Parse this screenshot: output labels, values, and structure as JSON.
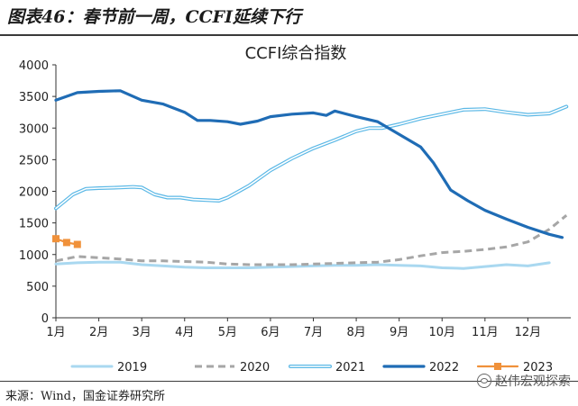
{
  "header": {
    "figure_title": "图表46：春节前一周，CCFI延续下行"
  },
  "footer": {
    "source": "来源：Wind，国金证券研究所",
    "watermark": "赵伟宏观探索"
  },
  "chart_data": {
    "type": "line",
    "title": "CCFI综合指数",
    "xlabel": "",
    "ylabel": "",
    "x_ticks": [
      "1月",
      "2月",
      "3月",
      "4月",
      "5月",
      "6月",
      "7月",
      "8月",
      "9月",
      "10月",
      "11月",
      "12月"
    ],
    "y_ticks": [
      0,
      500,
      1000,
      1500,
      2000,
      2500,
      3000,
      3500,
      4000
    ],
    "xlim": [
      1,
      13
    ],
    "ylim": [
      0,
      4000
    ],
    "grid": false,
    "legend": "bottom",
    "series": [
      {
        "name": "2019",
        "color": "#a9d8f0",
        "style": "solid",
        "x": [
          1.0,
          1.5,
          2.0,
          2.5,
          3.0,
          3.5,
          4.0,
          4.5,
          5.0,
          5.5,
          6.0,
          6.5,
          7.0,
          7.5,
          8.0,
          8.5,
          9.0,
          9.5,
          10.0,
          10.5,
          11.0,
          11.5,
          12.0,
          12.5
        ],
        "y": [
          850,
          870,
          880,
          880,
          840,
          820,
          800,
          790,
          790,
          790,
          800,
          810,
          820,
          830,
          830,
          840,
          830,
          820,
          790,
          780,
          810,
          840,
          820,
          870
        ]
      },
      {
        "name": "2020",
        "color": "#a6a6a6",
        "style": "dashed",
        "x": [
          1.0,
          1.5,
          2.0,
          2.5,
          3.0,
          3.5,
          4.0,
          4.5,
          5.0,
          5.5,
          6.0,
          6.5,
          7.0,
          7.5,
          8.0,
          8.5,
          9.0,
          9.5,
          10.0,
          10.5,
          11.0,
          11.5,
          12.0,
          12.5,
          12.9
        ],
        "y": [
          900,
          970,
          950,
          930,
          900,
          900,
          890,
          880,
          850,
          840,
          840,
          840,
          850,
          860,
          870,
          880,
          920,
          980,
          1030,
          1050,
          1080,
          1120,
          1200,
          1400,
          1620
        ]
      },
      {
        "name": "2021",
        "color": "#5bb8e6",
        "style": "double",
        "x": [
          1.0,
          1.4,
          1.7,
          2.0,
          2.5,
          2.8,
          3.0,
          3.3,
          3.6,
          3.9,
          4.2,
          4.5,
          4.8,
          5.0,
          5.5,
          6.0,
          6.5,
          7.0,
          7.5,
          8.0,
          8.3,
          8.6,
          9.0,
          9.5,
          10.0,
          10.5,
          11.0,
          11.5,
          12.0,
          12.5,
          12.9
        ],
        "y": [
          1730,
          1950,
          2040,
          2050,
          2060,
          2070,
          2060,
          1950,
          1900,
          1900,
          1870,
          1860,
          1850,
          1900,
          2090,
          2330,
          2520,
          2680,
          2810,
          2950,
          3000,
          3000,
          3060,
          3150,
          3220,
          3290,
          3300,
          3250,
          3210,
          3230,
          3340
        ]
      },
      {
        "name": "2022",
        "color": "#1f6cb5",
        "style": "solid-bold",
        "x": [
          1.0,
          1.5,
          2.0,
          2.5,
          3.0,
          3.5,
          4.0,
          4.3,
          4.6,
          5.0,
          5.3,
          5.7,
          6.0,
          6.5,
          7.0,
          7.3,
          7.5,
          8.0,
          8.5,
          9.0,
          9.5,
          9.8,
          10.2,
          10.6,
          11.0,
          11.5,
          12.0,
          12.5,
          12.8
        ],
        "y": [
          3440,
          3560,
          3580,
          3590,
          3440,
          3380,
          3250,
          3120,
          3120,
          3100,
          3060,
          3110,
          3180,
          3220,
          3240,
          3200,
          3270,
          3180,
          3100,
          2900,
          2700,
          2450,
          2020,
          1850,
          1700,
          1560,
          1430,
          1320,
          1270
        ]
      },
      {
        "name": "2023",
        "color": "#f0913a",
        "style": "solid-square",
        "x": [
          1.0,
          1.25,
          1.5
        ],
        "y": [
          1250,
          1190,
          1160
        ]
      }
    ]
  }
}
